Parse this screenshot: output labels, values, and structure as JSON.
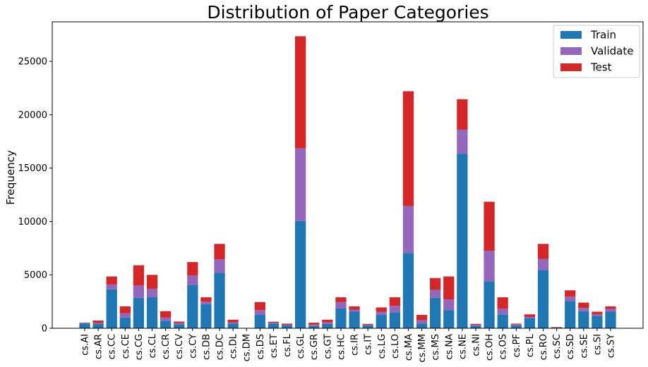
{
  "chart_data": {
    "type": "bar",
    "stacked": true,
    "title": "Distribution of Paper Categories",
    "xlabel": "",
    "ylabel": "Frequency",
    "ylim": [
      0,
      28700
    ],
    "yticks": [
      0,
      5000,
      10000,
      15000,
      20000,
      25000
    ],
    "legend_position": "top-right",
    "grid": false,
    "categories": [
      "cs.AI",
      "cs.AR",
      "cs.CC",
      "cs.CE",
      "cs.CG",
      "cs.CL",
      "cs.CR",
      "cs.CV",
      "cs.CY",
      "cs.DB",
      "cs.DC",
      "cs.DL",
      "cs.DM",
      "cs.DS",
      "cs.ET",
      "cs.FL",
      "cs.GL",
      "cs.GR",
      "cs.GT",
      "cs.HC",
      "cs.IR",
      "cs.IT",
      "cs.LG",
      "cs.LO",
      "cs.MA",
      "cs.MM",
      "cs.MS",
      "cs.NA",
      "cs.NE",
      "cs.NI",
      "cs.OH",
      "cs.OS",
      "cs.PF",
      "cs.PL",
      "cs.RO",
      "cs.SC",
      "cs.SD",
      "cs.SE",
      "cs.SI",
      "cs.SY"
    ],
    "series": [
      {
        "name": "Train",
        "color": "#1f77b4",
        "values": [
          450,
          400,
          3650,
          1000,
          2850,
          2900,
          700,
          380,
          4050,
          2250,
          5200,
          450,
          10,
          1250,
          450,
          270,
          10050,
          220,
          400,
          1850,
          1550,
          270,
          1250,
          1500,
          7050,
          450,
          2850,
          1700,
          16350,
          250,
          4400,
          1300,
          270,
          950,
          5450,
          60,
          2550,
          1600,
          1150,
          1550
        ]
      },
      {
        "name": "Validate",
        "color": "#9467bd",
        "values": [
          50,
          100,
          450,
          400,
          1150,
          800,
          300,
          100,
          900,
          250,
          1250,
          100,
          5,
          450,
          60,
          60,
          6800,
          120,
          150,
          600,
          200,
          60,
          300,
          600,
          4400,
          300,
          750,
          1000,
          2250,
          60,
          2850,
          550,
          80,
          100,
          1050,
          20,
          400,
          300,
          150,
          250
        ]
      },
      {
        "name": "Test",
        "color": "#d62728",
        "values": [
          30,
          220,
          750,
          650,
          1900,
          1300,
          600,
          150,
          1250,
          400,
          1450,
          250,
          5,
          750,
          100,
          100,
          10500,
          180,
          250,
          450,
          300,
          80,
          400,
          800,
          10750,
          500,
          1100,
          2150,
          2850,
          100,
          4600,
          1050,
          80,
          250,
          1400,
          40,
          600,
          500,
          250,
          250
        ]
      }
    ]
  }
}
